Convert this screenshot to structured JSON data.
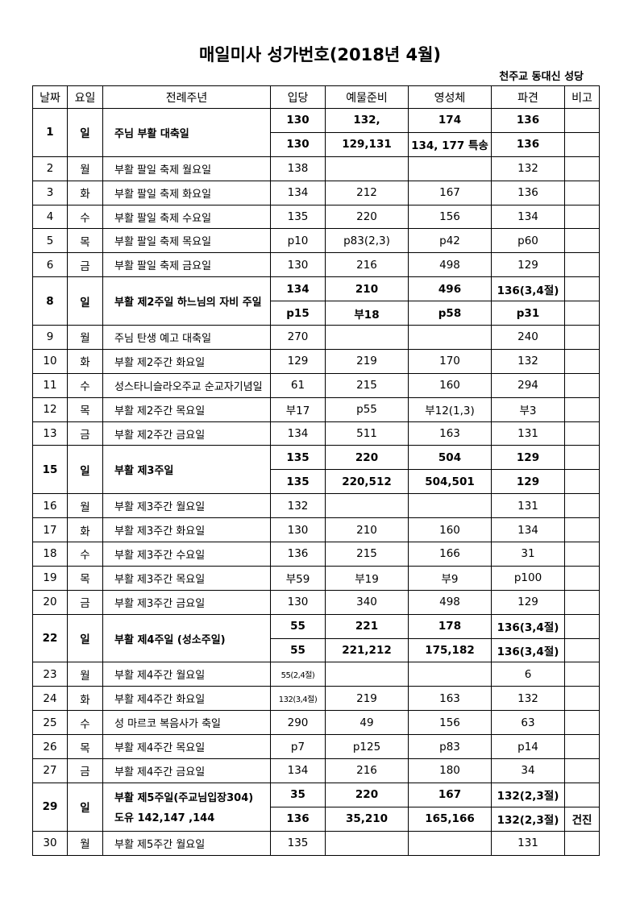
{
  "header": {
    "title": "매일미사 성가번호(2018년 4월)",
    "subtitle": "천주교 동대신 성당"
  },
  "table": {
    "columns": [
      "날짜",
      "요일",
      "전례주년",
      "입당",
      "예물준비",
      "영성체",
      "파견",
      "비고"
    ],
    "rows": [
      {
        "date": "1",
        "day": "일",
        "feast": "주님 부활 대축일",
        "lines": [
          [
            "130",
            "132,",
            "174",
            "136",
            null
          ],
          [
            "130",
            "129,131",
            "134, 177 특송",
            "136",
            null
          ]
        ]
      },
      {
        "date": "2",
        "day": "월",
        "feast": "부활 팔일 축제 월요일",
        "lines": [
          [
            "138",
            null,
            null,
            "132",
            null
          ]
        ]
      },
      {
        "date": "3",
        "day": "화",
        "feast": "부활 팔일 축제 화요일",
        "lines": [
          [
            "134",
            "212",
            "167",
            "136",
            null
          ]
        ]
      },
      {
        "date": "4",
        "day": "수",
        "feast": "부활 팔일 축제 수요일",
        "lines": [
          [
            "135",
            "220",
            "156",
            "134",
            null
          ]
        ]
      },
      {
        "date": "5",
        "day": "목",
        "feast": "부활 팔일 축제 목요일",
        "lines": [
          [
            "p10",
            "p83(2,3)",
            "p42",
            "p60",
            null
          ]
        ]
      },
      {
        "date": "6",
        "day": "금",
        "feast": "부활 팔일 축제 금요일",
        "lines": [
          [
            "130",
            "216",
            "498",
            "129",
            null
          ]
        ]
      },
      {
        "date": "8",
        "day": "일",
        "feast": "부활 제2주일 하느님의 자비 주일",
        "lines": [
          [
            "134",
            "210",
            "496",
            "136(3,4절)",
            null
          ],
          [
            "p15",
            "부18",
            "p58",
            "p31",
            null
          ]
        ]
      },
      {
        "date": "9",
        "day": "월",
        "feast": "주님 탄생 예고 대축일",
        "lines": [
          [
            "270",
            null,
            null,
            "240",
            null
          ]
        ]
      },
      {
        "date": "10",
        "day": "화",
        "feast": "부활 제2주간 화요일",
        "lines": [
          [
            "129",
            "219",
            "170",
            "132",
            null
          ]
        ]
      },
      {
        "date": "11",
        "day": "수",
        "feast": "성스타니슬라오주교 순교자기념일",
        "lines": [
          [
            "61",
            "215",
            "160",
            "294",
            null
          ]
        ]
      },
      {
        "date": "12",
        "day": "목",
        "feast": "부활 제2주간 목요일",
        "lines": [
          [
            "부17",
            "p55",
            "부12(1,3)",
            "부3",
            null
          ]
        ]
      },
      {
        "date": "13",
        "day": "금",
        "feast": "부활 제2주간 금요일",
        "lines": [
          [
            "134",
            "511",
            "163",
            "131",
            null
          ]
        ]
      },
      {
        "date": "15",
        "day": "일",
        "feast": "부활 제3주일",
        "lines": [
          [
            "135",
            "220",
            "504",
            "129",
            null
          ],
          [
            "135",
            "220,512",
            "504,501",
            "129",
            null
          ]
        ]
      },
      {
        "date": "16",
        "day": "월",
        "feast": "부활 제3주간 월요일",
        "lines": [
          [
            "132",
            null,
            null,
            "131",
            null
          ]
        ]
      },
      {
        "date": "17",
        "day": "화",
        "feast": "부활 제3주간 화요일",
        "lines": [
          [
            "130",
            "210",
            "160",
            "134",
            null
          ]
        ]
      },
      {
        "date": "18",
        "day": "수",
        "feast": "부활 제3주간 수요일",
        "lines": [
          [
            "136",
            "215",
            "166",
            "31",
            null
          ]
        ]
      },
      {
        "date": "19",
        "day": "목",
        "feast": "부활 제3주간 목요일",
        "lines": [
          [
            "부59",
            "부19",
            "부9",
            "p100",
            null
          ]
        ]
      },
      {
        "date": "20",
        "day": "금",
        "feast": "부활 제3주간 금요일",
        "lines": [
          [
            "130",
            "340",
            "498",
            "129",
            null
          ]
        ]
      },
      {
        "date": "22",
        "day": "일",
        "feast": "부활 제4주일 (성소주일)",
        "lines": [
          [
            "55",
            "221",
            "178",
            "136(3,4절)",
            null
          ],
          [
            "55",
            "221,212",
            "175,182",
            "136(3,4절)",
            null
          ]
        ]
      },
      {
        "date": "23",
        "day": "월",
        "feast": "부활 제4주간 월요일",
        "lines": [
          [
            "55(2,4절)",
            null,
            null,
            "6",
            null
          ]
        ]
      },
      {
        "date": "24",
        "day": "화",
        "feast": "부활 제4주간 화요일",
        "lines": [
          [
            "132(3,4절)",
            "219",
            "163",
            "132",
            null
          ]
        ]
      },
      {
        "date": "25",
        "day": "수",
        "feast": "성 마르코 복음사가 축일",
        "lines": [
          [
            "290",
            "49",
            "156",
            "63",
            null
          ]
        ]
      },
      {
        "date": "26",
        "day": "목",
        "feast": "부활 제4주간 목요일",
        "lines": [
          [
            "p7",
            "p125",
            "p83",
            "p14",
            null
          ]
        ]
      },
      {
        "date": "27",
        "day": "금",
        "feast": "부활 제4주간 금요일",
        "lines": [
          [
            "134",
            "216",
            "180",
            "34",
            null
          ]
        ]
      },
      {
        "date": "29",
        "day": "일",
        "feast": [
          "부활 제5주일(주교님입장304)",
          "도유 142,147 ,144"
        ],
        "lines": [
          [
            "35",
            "220",
            "167",
            "132(2,3절)",
            null
          ],
          [
            "136",
            "35,210",
            "165,166",
            "132(2,3절)",
            "건진"
          ]
        ]
      },
      {
        "date": "30",
        "day": "월",
        "feast": "부활 제5주간 월요일",
        "lines": [
          [
            "135",
            null,
            null,
            "131",
            null
          ]
        ]
      }
    ]
  }
}
